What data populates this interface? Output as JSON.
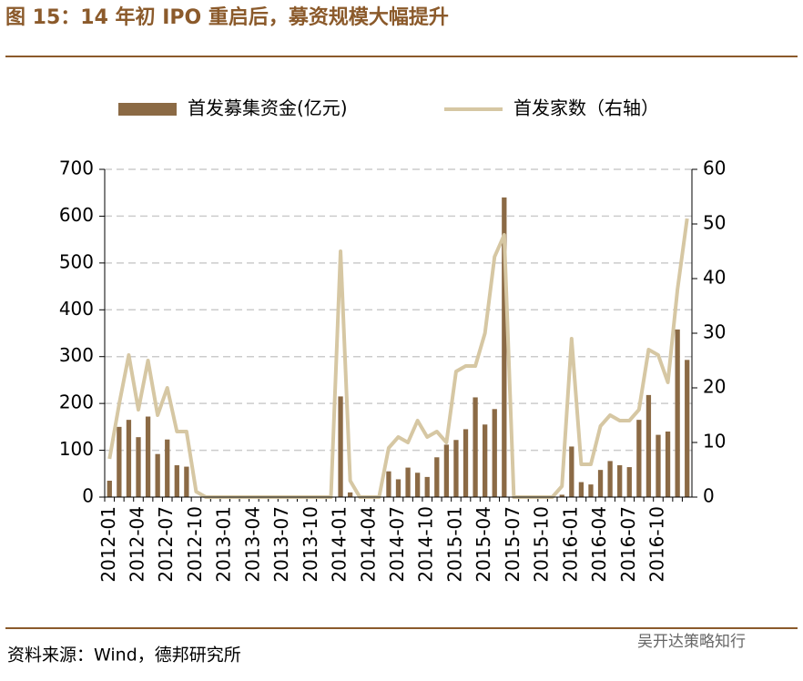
{
  "header": {
    "title": "图 15：14 年初 IPO 重启后，募资规模大幅提升"
  },
  "chart_data": {
    "type": "bar-line",
    "categories": [
      "2012-01",
      null,
      null,
      "2012-04",
      null,
      null,
      "2012-07",
      null,
      null,
      "2012-10",
      null,
      null,
      "2013-01",
      null,
      null,
      "2013-04",
      null,
      null,
      "2013-07",
      null,
      null,
      "2013-10",
      null,
      null,
      "2014-01",
      null,
      null,
      "2014-04",
      null,
      null,
      "2014-07",
      null,
      null,
      "2014-10",
      null,
      null,
      "2015-01",
      null,
      null,
      "2015-04",
      null,
      null,
      "2015-07",
      null,
      null,
      "2015-10",
      null,
      null,
      "2016-01",
      null,
      null,
      "2016-04",
      null,
      null,
      "2016-07",
      null,
      null,
      "2016-10",
      null,
      null,
      null
    ],
    "series": [
      {
        "name": "首发募集资金(亿元)",
        "type": "bar",
        "color": "#8b6a45",
        "values": [
          35,
          150,
          165,
          128,
          172,
          92,
          123,
          68,
          65,
          0,
          0,
          0,
          0,
          0,
          0,
          0,
          0,
          0,
          0,
          0,
          0,
          0,
          0,
          0,
          215,
          10,
          0,
          0,
          0,
          55,
          38,
          63,
          52,
          43,
          85,
          112,
          122,
          145,
          213,
          155,
          188,
          640,
          0,
          0,
          0,
          0,
          0,
          5,
          108,
          32,
          27,
          58,
          77,
          68,
          64,
          165,
          218,
          133,
          140,
          358,
          293
        ]
      },
      {
        "name": "首发家数（右轴）",
        "type": "line",
        "axis": "y2",
        "color": "#d6c7a3",
        "values": [
          7,
          17,
          26,
          16,
          25,
          15,
          20,
          12,
          12,
          1,
          0,
          0,
          0,
          0,
          0,
          0,
          0,
          0,
          0,
          0,
          0,
          0,
          0,
          0,
          45,
          3,
          0,
          0,
          0,
          9,
          11,
          10,
          14,
          11,
          12,
          10,
          23,
          24,
          24,
          30,
          44,
          48,
          0,
          0,
          0,
          0,
          0,
          2,
          29,
          6,
          6,
          13,
          15,
          14,
          14,
          16,
          27,
          26,
          21,
          38,
          51
        ]
      }
    ],
    "ylim": [
      0,
      700
    ],
    "yticks": [
      0,
      100,
      200,
      300,
      400,
      500,
      600,
      700
    ],
    "y2lim": [
      0,
      60
    ],
    "y2ticks": [
      0,
      10,
      20,
      30,
      40,
      50,
      60
    ],
    "grid": true
  },
  "footer": {
    "source": "资料来源：Wind，德邦研究所",
    "watermark": "吴开达策略知行"
  }
}
